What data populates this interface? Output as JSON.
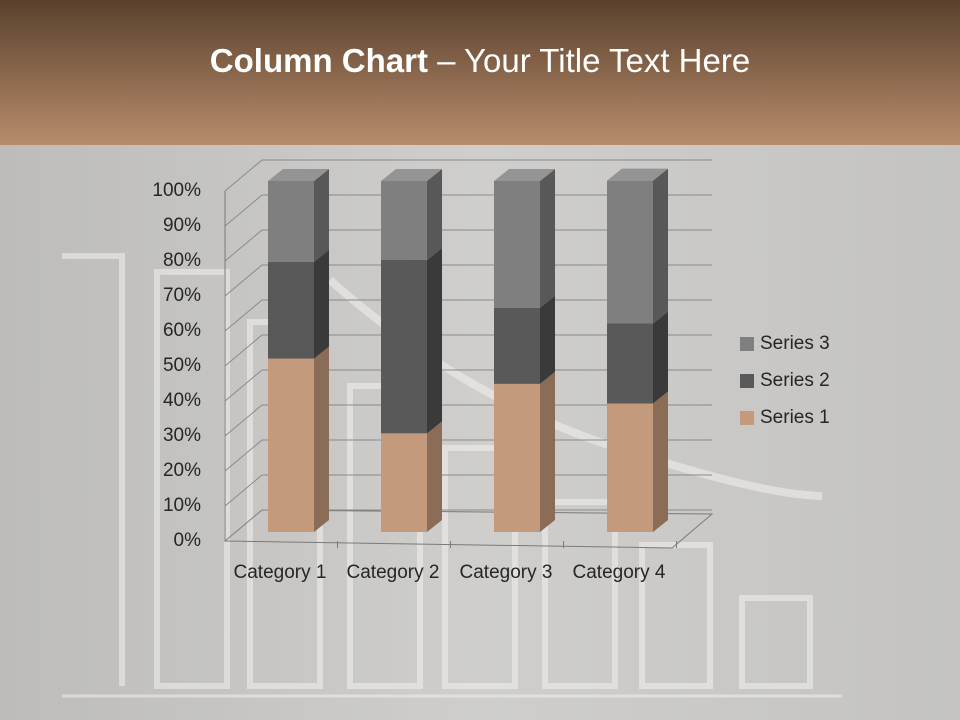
{
  "chart_data": {
    "type": "bar3d_stacked_percent",
    "title_emphasis": "Column Chart",
    "title_rest": "– Your Title Text Here",
    "categories": [
      "Category 1",
      "Category 2",
      "Category 3",
      "Category 4"
    ],
    "series": [
      {
        "name": "Series 1",
        "color": "#c49a7c",
        "side": "#8a6c57",
        "top": "#d8b49a",
        "values": [
          49.4,
          28.1,
          42.2,
          36.6
        ]
      },
      {
        "name": "Series 2",
        "color": "#595959",
        "side": "#3a3a3a",
        "top": "#6a6a6a",
        "values": [
          27.6,
          49.4,
          21.7,
          22.8
        ]
      },
      {
        "name": "Series 3",
        "color": "#7f7f7f",
        "side": "#585858",
        "top": "#949494",
        "values": [
          23.0,
          22.5,
          36.1,
          40.7
        ]
      }
    ],
    "ylim": [
      0,
      100
    ],
    "yticks": [
      {
        "value": 0,
        "label": "0%"
      },
      {
        "value": 10,
        "label": "10%"
      },
      {
        "value": 20,
        "label": "20%"
      },
      {
        "value": 30,
        "label": "30%"
      },
      {
        "value": 40,
        "label": "40%"
      },
      {
        "value": 50,
        "label": "50%"
      },
      {
        "value": 60,
        "label": "60%"
      },
      {
        "value": 70,
        "label": "70%"
      },
      {
        "value": 80,
        "label": "80%"
      },
      {
        "value": 90,
        "label": "90%"
      },
      {
        "value": 100,
        "label": "100%"
      }
    ],
    "grid": true
  }
}
